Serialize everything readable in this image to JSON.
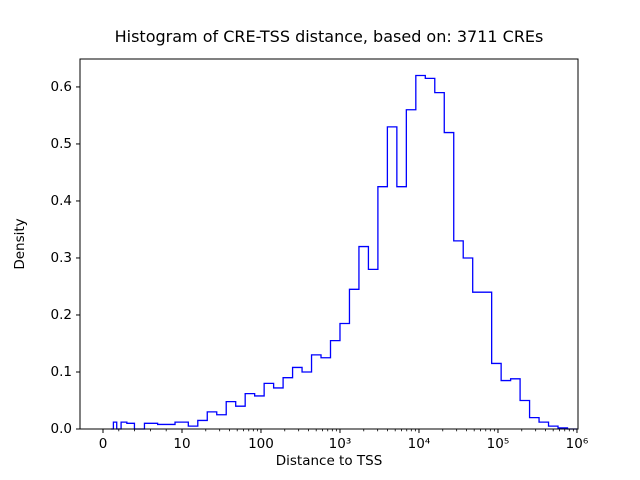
{
  "figure": {
    "background": "#ffffff"
  },
  "chart_data": {
    "type": "histogram-step",
    "title": "Histogram of CRE-TSS distance, based on: 3711 CREs",
    "xlabel": "Distance to TSS",
    "ylabel": "Density",
    "n_cres": 3711,
    "line_color": "#0000ff",
    "axis_color": "#000000",
    "x_scale": "symlog",
    "linthresh": 10,
    "x_tick_values": [
      0,
      10,
      100,
      1000,
      10000,
      100000,
      1000000
    ],
    "x_tick_labels": [
      "0",
      "10",
      "100",
      "10³",
      "10⁴",
      "10⁵",
      "10⁶"
    ],
    "y_ticks": [
      0.0,
      0.1,
      0.2,
      0.3,
      0.4,
      0.5,
      0.6
    ],
    "ylim": [
      0,
      0.649
    ],
    "grid": false,
    "legend": "none",
    "bin_edges_log10": [
      0,
      0.12,
      0.24,
      0.36,
      0.48,
      0.6,
      0.72,
      0.84,
      0.96,
      1.08,
      1.2,
      1.32,
      1.44,
      1.56,
      1.68,
      1.8,
      1.92,
      2.04,
      2.16,
      2.28,
      2.4,
      2.52,
      2.64,
      2.76,
      2.88,
      3.0,
      3.12,
      3.24,
      3.36,
      3.48,
      3.6,
      3.72,
      3.84,
      3.96,
      4.08,
      4.2,
      4.32,
      4.44,
      4.56,
      4.68,
      4.8,
      4.92,
      5.04,
      5.16,
      5.28,
      5.4,
      5.52,
      5.64,
      5.76,
      5.88,
      6.0
    ],
    "densities": [
      0,
      0.012,
      0,
      0.012,
      0.01,
      0,
      0.01,
      0.008,
      0.012,
      0.005,
      0.015,
      0.03,
      0.025,
      0.048,
      0.04,
      0.062,
      0.058,
      0.08,
      0.072,
      0.09,
      0.108,
      0.1,
      0.13,
      0.125,
      0.155,
      0.185,
      0.245,
      0.32,
      0.28,
      0.425,
      0.53,
      0.425,
      0.56,
      0.62,
      0.615,
      0.59,
      0.52,
      0.33,
      0.3,
      0.24,
      0.24,
      0.115,
      0.085,
      0.088,
      0.05,
      0.02,
      0.012,
      0.005,
      0.002,
      0
    ]
  }
}
